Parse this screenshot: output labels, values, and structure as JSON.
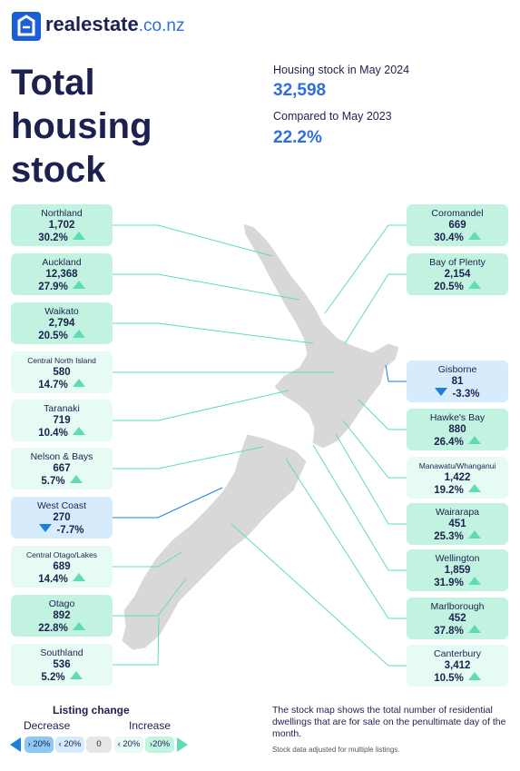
{
  "brand": {
    "name": "realestate",
    "domain": ".co.nz"
  },
  "header": {
    "title": "Total housing stock",
    "stock_label": "Housing stock in May 2024",
    "stock_value": "32,598",
    "compare_label": "Compared to May 2023",
    "compare_value": "22.2%"
  },
  "regions_left": [
    {
      "name": "Northland",
      "value": "1,702",
      "change": "30.2%"
    },
    {
      "name": "Auckland",
      "value": "12,368",
      "change": "27.9%"
    },
    {
      "name": "Waikato",
      "value": "2,794",
      "change": "20.5%"
    },
    {
      "name": "Central North Island",
      "value": "580",
      "change": "14.7%"
    },
    {
      "name": "Taranaki",
      "value": "719",
      "change": "10.4%"
    },
    {
      "name": "Nelson & Bays",
      "value": "667",
      "change": "5.7%"
    },
    {
      "name": "West Coast",
      "value": "270",
      "change": "-7.7%"
    },
    {
      "name": "Central Otago/Lakes",
      "value": "689",
      "change": "14.4%"
    },
    {
      "name": "Otago",
      "value": "892",
      "change": "22.8%"
    },
    {
      "name": "Southland",
      "value": "536",
      "change": "5.2%"
    }
  ],
  "regions_right": [
    {
      "name": "Coromandel",
      "value": "669",
      "change": "30.4%"
    },
    {
      "name": "Bay of Plenty",
      "value": "2,154",
      "change": "20.5%"
    },
    {
      "name": "Gisborne",
      "value": "81",
      "change": "-3.3%"
    },
    {
      "name": "Hawke's Bay",
      "value": "880",
      "change": "26.4%"
    },
    {
      "name": "Manawatu/Whanganui",
      "value": "1,422",
      "change": "19.2%"
    },
    {
      "name": "Wairarapa",
      "value": "451",
      "change": "25.3%"
    },
    {
      "name": "Wellington",
      "value": "1,859",
      "change": "31.9%"
    },
    {
      "name": "Marlborough",
      "value": "452",
      "change": "37.8%"
    },
    {
      "name": "Canterbury",
      "value": "3,412",
      "change": "10.5%"
    }
  ],
  "legend": {
    "title": "Listing change",
    "decrease": "Decrease",
    "increase": "Increase",
    "items": [
      "› 20%",
      "‹ 20%",
      "0",
      "‹ 20%",
      "›20%"
    ]
  },
  "footnote": {
    "text": "The stock map shows the total number of residential dwellings that are for sale on the penultimate day of the month.",
    "note": "Stock data adjusted for multiple listings."
  }
}
